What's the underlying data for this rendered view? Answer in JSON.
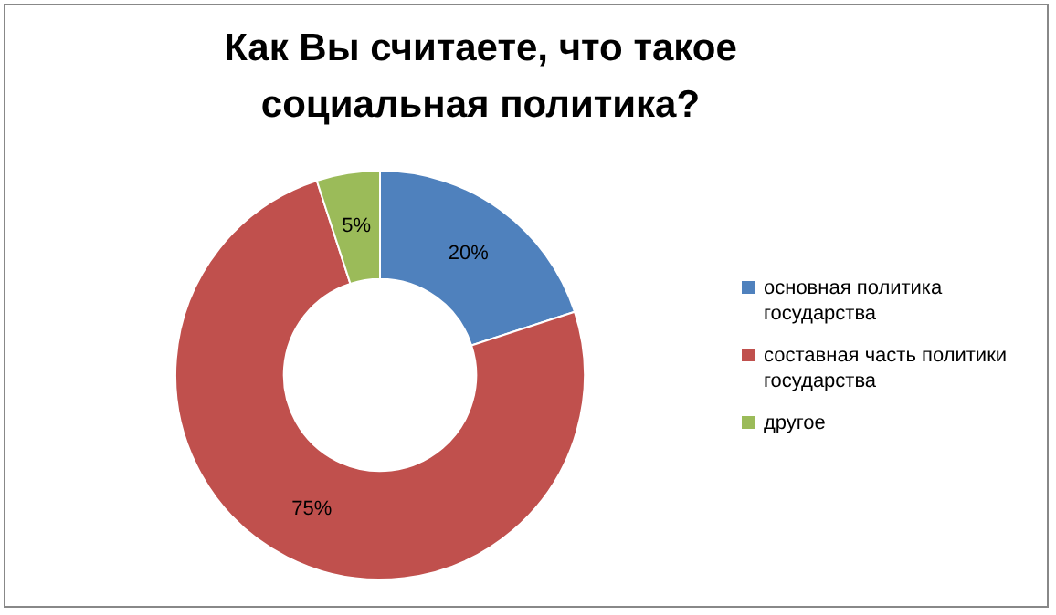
{
  "chart_data": {
    "type": "donut",
    "title": "Как Вы считаете, что такое социальная политика?",
    "categories": [
      "основная политика государства",
      "составная часть политики государства",
      "другое"
    ],
    "values": [
      20,
      75,
      5
    ],
    "colors": [
      "#4f81bd",
      "#c0504d",
      "#9bbb59"
    ],
    "value_labels": [
      "20%",
      "75%",
      "5%"
    ],
    "legend": "right"
  }
}
